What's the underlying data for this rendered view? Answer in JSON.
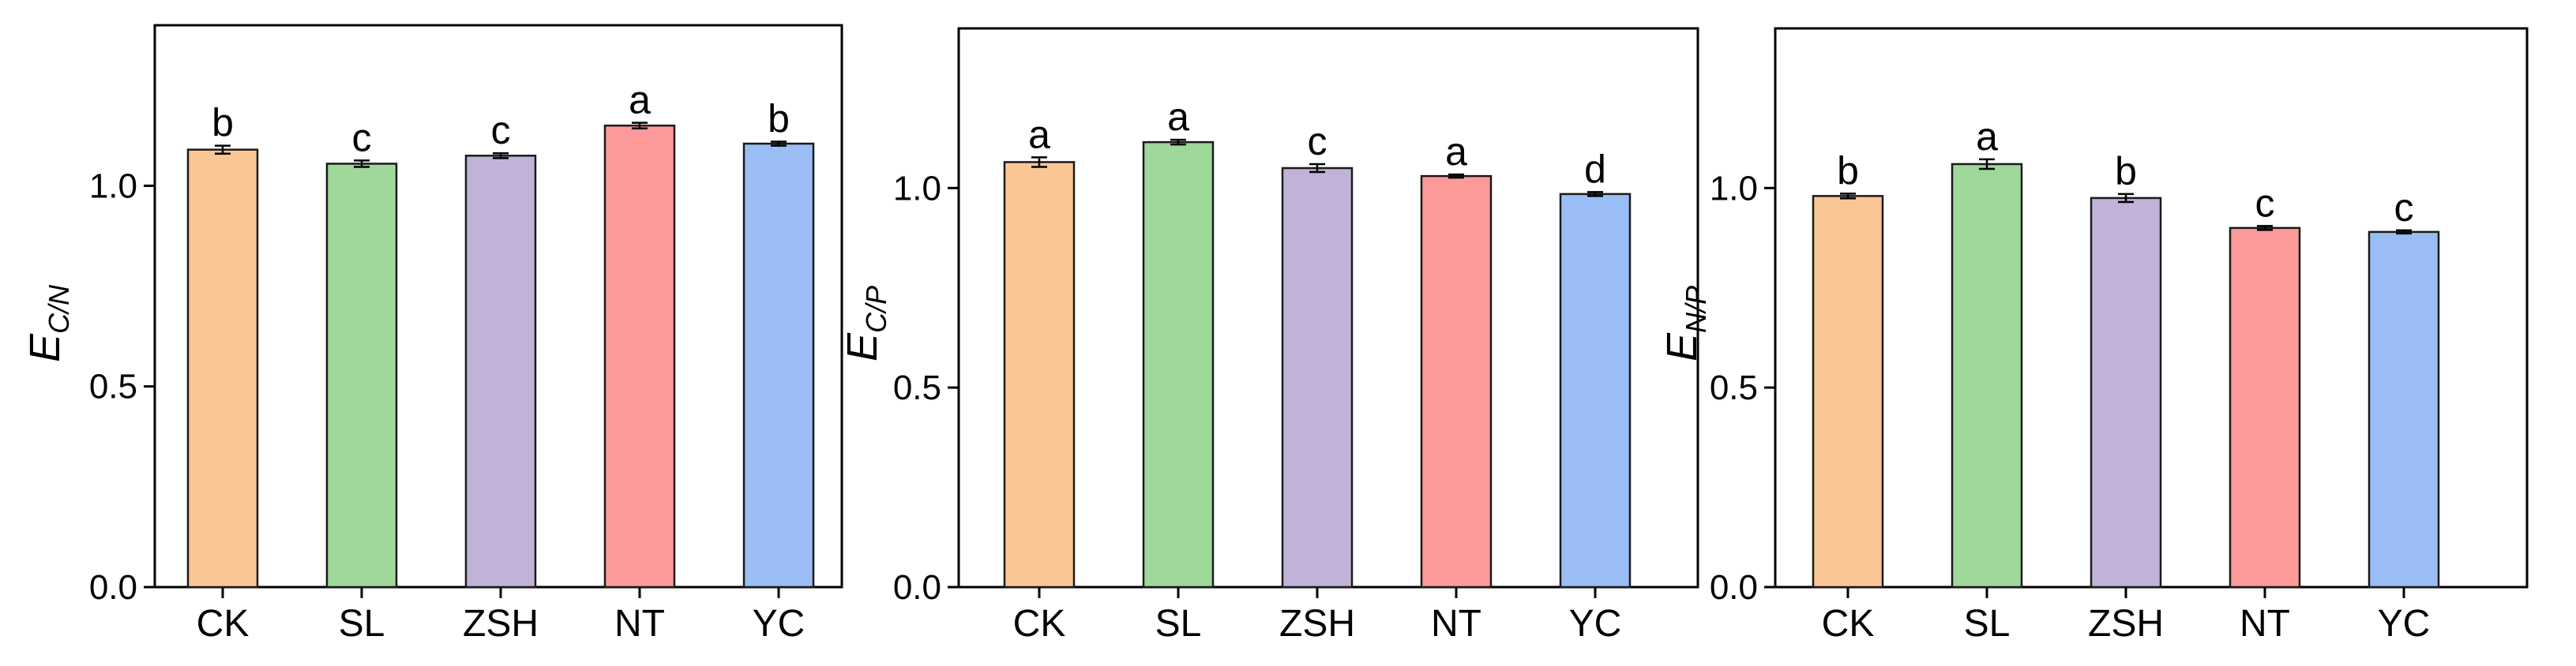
{
  "chart_data": [
    {
      "type": "bar",
      "categories": [
        "CK",
        "SL",
        "ZSH",
        "NT",
        "YC"
      ],
      "values": [
        1.09,
        1.055,
        1.075,
        1.15,
        1.105
      ],
      "errors": [
        0.01,
        0.008,
        0.006,
        0.007,
        0.005
      ],
      "significance": [
        "b",
        "c",
        "c",
        "a",
        "b"
      ],
      "colors": [
        "#FAC794",
        "#9ED89A",
        "#C1B2D8",
        "#FC9A9A",
        "#9BBDF5"
      ],
      "ylabel_main": "E",
      "ylabel_sub": "C/N",
      "ylim": [
        0,
        1.4
      ],
      "yticks": [
        "0.0",
        "0.5",
        "1.0"
      ],
      "ytick_values": [
        0,
        0.5,
        1.0
      ],
      "grid": false,
      "legend": "none"
    },
    {
      "type": "bar",
      "categories": [
        "CK",
        "SL",
        "ZSH",
        "NT",
        "YC"
      ],
      "values": [
        1.065,
        1.115,
        1.05,
        1.03,
        0.985
      ],
      "errors": [
        0.012,
        0.006,
        0.01,
        0.004,
        0.005
      ],
      "significance": [
        "a",
        "a",
        "c",
        "a",
        "d"
      ],
      "colors": [
        "#FAC794",
        "#9ED89A",
        "#C1B2D8",
        "#FC9A9A",
        "#9BBDF5"
      ],
      "ylabel_main": "E",
      "ylabel_sub": "C/P",
      "ylim": [
        0,
        1.4
      ],
      "yticks": [
        "0.0",
        "0.5",
        "1.0"
      ],
      "ytick_values": [
        0,
        0.5,
        1.0
      ],
      "grid": false,
      "legend": "none"
    },
    {
      "type": "bar",
      "categories": [
        "CK",
        "SL",
        "ZSH",
        "NT",
        "YC"
      ],
      "values": [
        0.98,
        1.06,
        0.975,
        0.9,
        0.89
      ],
      "errors": [
        0.006,
        0.012,
        0.01,
        0.005,
        0.004
      ],
      "significance": [
        "b",
        "a",
        "b",
        "c",
        "c"
      ],
      "colors": [
        "#FAC794",
        "#9ED89A",
        "#C1B2D8",
        "#FC9A9A",
        "#9BBDF5"
      ],
      "ylabel_main": "E",
      "ylabel_sub": "N/P",
      "ylim": [
        0,
        1.4
      ],
      "yticks": [
        "0.0",
        "0.5",
        "1.0"
      ],
      "ytick_values": [
        0,
        0.5,
        1.0
      ],
      "grid": false,
      "legend": "none"
    }
  ]
}
